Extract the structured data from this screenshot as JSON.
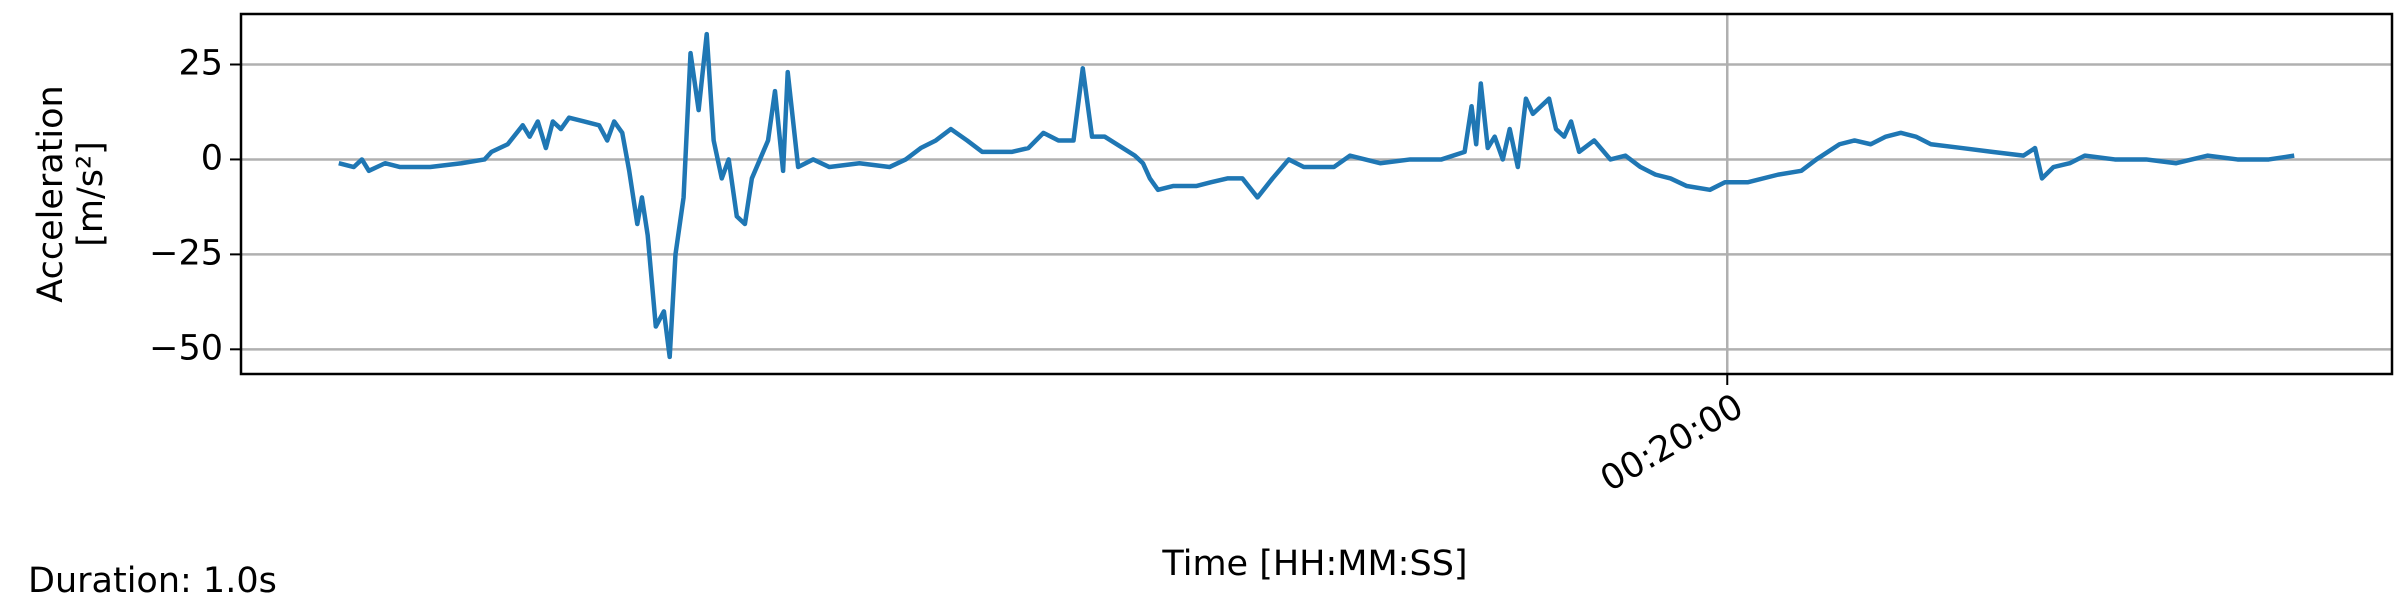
{
  "chart_data": {
    "type": "line",
    "ylabel": [
      "Acceleration",
      "[m/s²]"
    ],
    "xlabel": "Time [HH:MM:SS]",
    "annotation": "Duration: 1.0s",
    "color": "#1f77b4",
    "grid": true,
    "x": [
      0,
      13,
      20,
      26,
      40,
      53,
      79,
      106,
      126,
      132,
      146,
      159,
      165,
      172,
      179,
      185,
      192,
      199,
      212,
      225,
      232,
      238,
      245,
      251,
      258,
      262,
      267,
      274,
      281,
      286,
      291,
      298,
      304,
      311,
      318,
      324,
      331,
      337,
      344,
      351,
      357,
      364,
      371,
      377,
      384,
      388,
      397,
      410,
      424,
      450,
      476,
      490,
      503,
      516,
      529,
      543,
      556,
      582,
      596,
      609,
      622,
      635,
      643,
      651,
      662,
      688,
      695,
      701,
      708,
      721,
      741,
      754,
      768,
      781,
      794,
      807,
      821,
      834,
      860,
      874,
      900,
      926,
      953,
      973,
      979,
      983,
      987,
      993,
      999,
      1006,
      1012,
      1019,
      1026,
      1032,
      1046,
      1052,
      1059,
      1065,
      1072,
      1085,
      1099,
      1112,
      1125,
      1138,
      1151,
      1165,
      1185,
      1198,
      1218,
      1244,
      1264,
      1277,
      1297,
      1310,
      1324,
      1337,
      1350,
      1363,
      1376,
      1403,
      1429,
      1456,
      1466,
      1472,
      1482,
      1496,
      1509,
      1535,
      1562,
      1588,
      1615,
      1641,
      1668,
      1690
    ],
    "values": [
      -1,
      -2,
      0,
      -3,
      -1,
      -2,
      -2,
      -1,
      0,
      2,
      4,
      9,
      6,
      10,
      3,
      10,
      8,
      11,
      10,
      9,
      5,
      10,
      7,
      -3,
      -17,
      -10,
      -20,
      -44,
      -40,
      -52,
      -25,
      -10,
      28,
      13,
      33,
      5,
      -5,
      0,
      -15,
      -17,
      -5,
      0,
      5,
      18,
      -3,
      23,
      -2,
      0,
      -2,
      -1,
      -2,
      0,
      3,
      5,
      8,
      5,
      2,
      2,
      3,
      7,
      5,
      5,
      24,
      6,
      6,
      1,
      -1,
      -5,
      -8,
      -7,
      -7,
      -6,
      -5,
      -5,
      -10,
      -5,
      0,
      -2,
      -2,
      1,
      -1,
      0,
      0,
      2,
      14,
      4,
      20,
      3,
      6,
      0,
      8,
      -2,
      16,
      12,
      16,
      8,
      6,
      10,
      2,
      5,
      0,
      1,
      -2,
      -4,
      -5,
      -7,
      -8,
      -6,
      -6,
      -4,
      -3,
      0,
      4,
      5,
      4,
      6,
      7,
      6,
      4,
      3,
      2,
      1,
      3,
      -5,
      -2,
      -1,
      1,
      0,
      0,
      -1,
      1,
      0,
      0,
      1
    ],
    "xlim": [
      -84.5,
      1774.5
    ],
    "xticks": [
      {
        "value": 1200,
        "label": "00:20:00"
      }
    ],
    "ylim": [
      -56.5,
      38.3
    ],
    "yticks": [
      25,
      0,
      {
        "value": -25,
        "label": "−25"
      },
      {
        "value": -50,
        "label": "−50"
      }
    ]
  }
}
